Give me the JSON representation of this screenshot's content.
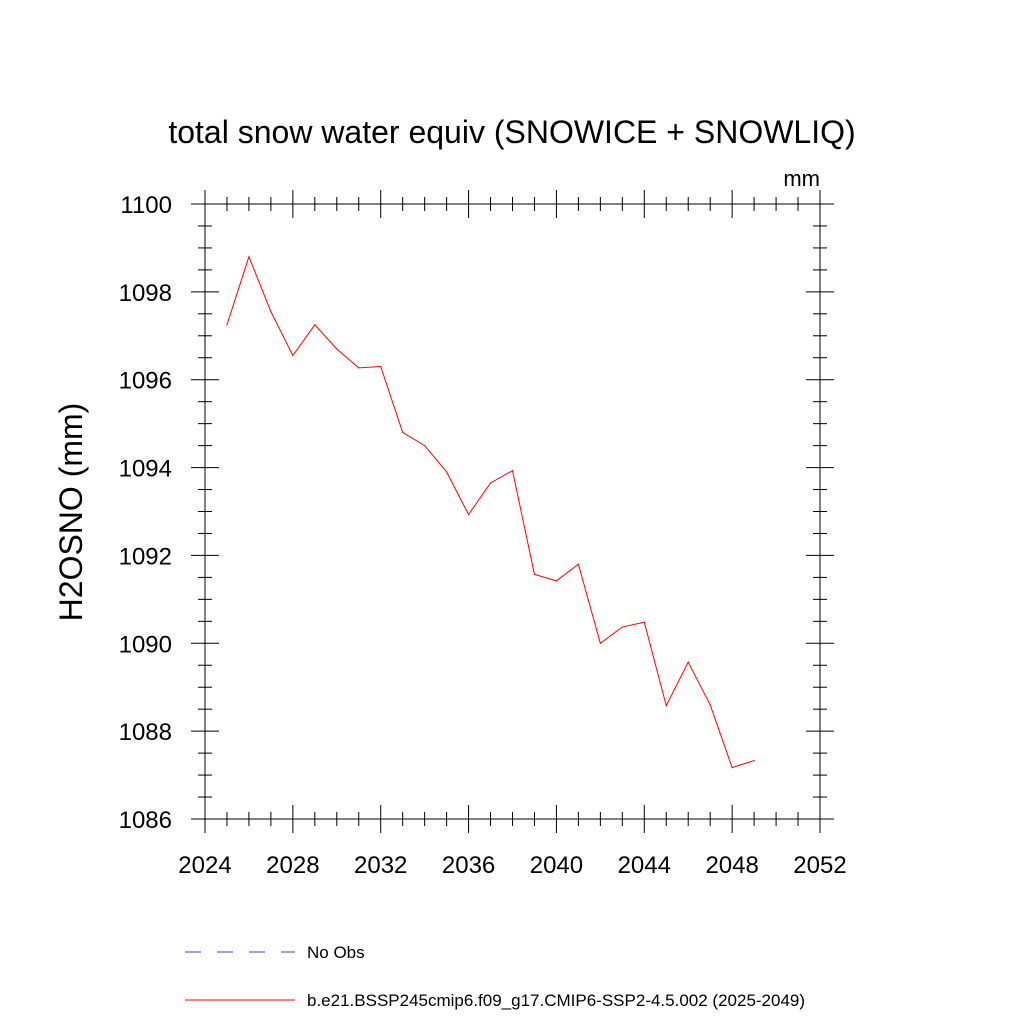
{
  "chart_data": {
    "type": "line",
    "title": "total snow water equiv (SNOWICE + SNOWLIQ)",
    "units": "mm",
    "ylabel": "H2OSNO  (mm)",
    "xlabel": "",
    "xlim": [
      2024,
      2052
    ],
    "ylim": [
      1086,
      1100
    ],
    "x_ticks": [
      2024,
      2028,
      2032,
      2036,
      2040,
      2044,
      2048,
      2052
    ],
    "y_ticks": [
      1086,
      1088,
      1090,
      1092,
      1094,
      1096,
      1098,
      1100
    ],
    "x_minor_step": 1,
    "y_minor_step": 0.5,
    "grid": false,
    "legend_placement": "bottom",
    "legend": [
      {
        "label": "No Obs",
        "color": "#4b3faa",
        "style": "dashed"
      },
      {
        "label": "b.e21.BSSP245cmip6.f09_g17.CMIP6-SSP2-4.5.002 (2025-2049)",
        "color": "#ff0000",
        "style": "solid"
      }
    ],
    "series": [
      {
        "name": "b.e21.BSSP245cmip6.f09_g17.CMIP6-SSP2-4.5.002 (2025-2049)",
        "color": "#ff0000",
        "x": [
          2025,
          2026,
          2027,
          2028,
          2029,
          2030,
          2031,
          2032,
          2033,
          2034,
          2035,
          2036,
          2037,
          2038,
          2039,
          2040,
          2041,
          2042,
          2043,
          2044,
          2045,
          2046,
          2047,
          2048,
          2049
        ],
        "y": [
          1097.25,
          1098.8,
          1097.55,
          1096.55,
          1097.25,
          1096.7,
          1096.27,
          1096.3,
          1094.8,
          1094.5,
          1093.9,
          1092.93,
          1093.65,
          1093.93,
          1091.57,
          1091.42,
          1091.8,
          1090.0,
          1090.37,
          1090.48,
          1088.58,
          1089.57,
          1088.6,
          1087.17,
          1087.33
        ]
      }
    ]
  }
}
